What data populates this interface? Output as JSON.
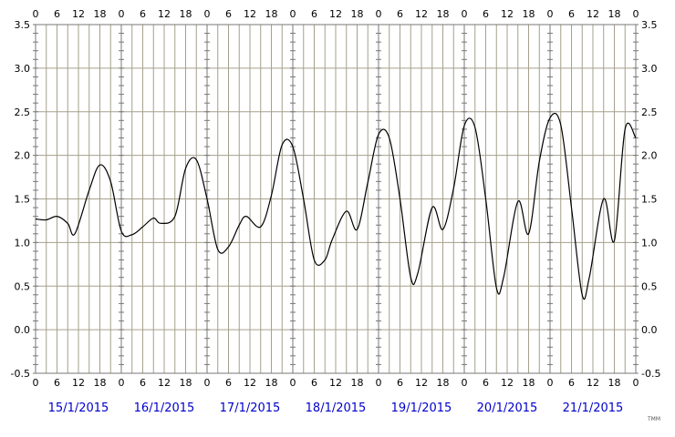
{
  "chart_data": {
    "type": "line",
    "title": "",
    "xlabel": "",
    "ylabel": "",
    "ylim": [
      -0.5,
      3.5
    ],
    "y_ticks": [
      "-0.5",
      "0.0",
      "0.5",
      "1.0",
      "1.5",
      "2.0",
      "2.5",
      "3.0",
      "3.5"
    ],
    "hour_ticks": [
      "0",
      "6",
      "12",
      "18"
    ],
    "days": [
      "15/1/2015",
      "16/1/2015",
      "17/1/2015",
      "18/1/2015",
      "19/1/2015",
      "20/1/2015",
      "21/1/2015"
    ],
    "grid": true,
    "series": [
      {
        "hours": [
          0,
          3,
          6,
          9,
          11,
          15,
          18,
          21,
          24,
          27,
          30,
          33,
          35,
          39,
          42,
          45,
          48,
          51,
          54,
          57,
          59,
          63,
          66,
          69,
          72,
          75,
          78,
          81,
          83,
          87,
          90,
          93,
          96,
          99,
          102,
          105,
          107,
          111,
          114,
          117,
          120,
          123,
          126,
          129,
          131,
          135,
          138,
          141,
          144,
          147,
          150,
          153,
          155,
          159,
          162,
          165,
          168
        ],
        "values": [
          1.27,
          1.26,
          1.3,
          1.22,
          1.1,
          1.6,
          1.89,
          1.7,
          1.13,
          1.09,
          1.18,
          1.28,
          1.22,
          1.3,
          1.85,
          1.95,
          1.5,
          0.92,
          0.95,
          1.2,
          1.3,
          1.18,
          1.54,
          2.12,
          2.1,
          1.5,
          0.8,
          0.8,
          1.03,
          1.36,
          1.15,
          1.69,
          2.24,
          2.2,
          1.5,
          0.6,
          0.65,
          1.4,
          1.15,
          1.62,
          2.34,
          2.32,
          1.5,
          0.48,
          0.6,
          1.47,
          1.1,
          1.93,
          2.43,
          2.35,
          1.4,
          0.4,
          0.6,
          1.5,
          1.02,
          2.3,
          2.2
        ]
      }
    ]
  },
  "brand": "TMM"
}
